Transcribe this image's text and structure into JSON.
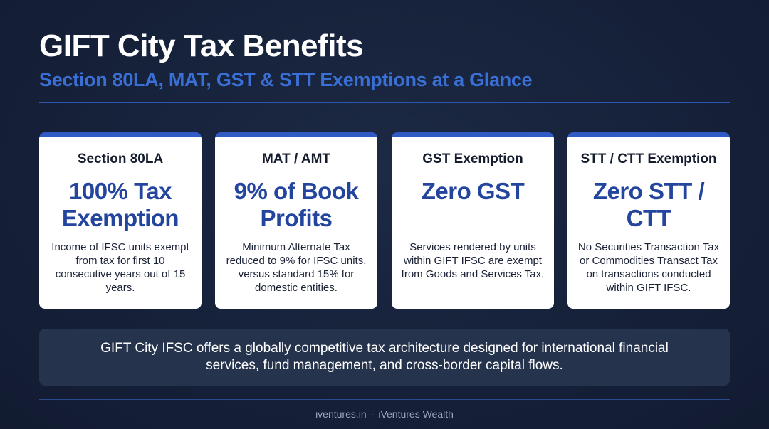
{
  "header": {
    "title": "GIFT City Tax Benefits",
    "subtitle": "Section 80LA, MAT, GST & STT Exemptions at a Glance"
  },
  "cards": [
    {
      "label": "Section 80LA",
      "headline": "100% Tax Exemption",
      "description": "Income of IFSC units exempt from tax for first 10 consecutive years out of 15 years."
    },
    {
      "label": "MAT / AMT",
      "headline": "9% of Book Profits",
      "description": "Minimum Alternate Tax reduced to 9% for IFSC units, versus standard 15% for domestic entities."
    },
    {
      "label": "GST Exemption",
      "headline": "Zero GST",
      "description": "Services rendered by units within GIFT IFSC are exempt from Goods and Services Tax."
    },
    {
      "label": "STT / CTT Exemption",
      "headline": "Zero STT / CTT",
      "description": "No Securities Transaction Tax or Commodities Transact Tax on transactions conducted within GIFT IFSC."
    }
  ],
  "summary": {
    "text": "GIFT City IFSC offers a globally competitive tax architecture designed for international financial services, fund management, and cross-border capital flows."
  },
  "footer": {
    "site": "iventures.in",
    "separator": "·",
    "brand": "iVentures Wealth"
  },
  "colors": {
    "background": "#16213a",
    "accent": "#2e5cc4",
    "subtitle": "#3a6fd6",
    "headline": "#24459e",
    "card_background": "#ffffff"
  }
}
